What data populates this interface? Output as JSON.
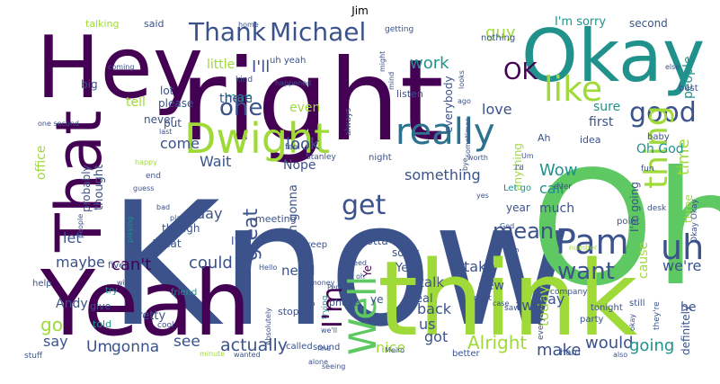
{
  "title": "Jim",
  "palette": {
    "dark": "#440154",
    "blue": "#3b528b",
    "teal": "#21918c",
    "green": "#5ec962",
    "lime": "#a0da39",
    "yellow": "#fde725",
    "mid": "#2c728e"
  },
  "words": [
    {
      "text": "Know",
      "color": "blue"
    },
    {
      "text": "right",
      "color": "dark"
    },
    {
      "text": "Oh",
      "color": "green"
    },
    {
      "text": "think",
      "color": "lime"
    },
    {
      "text": "Yeah",
      "color": "dark"
    },
    {
      "text": "Hey",
      "color": "dark"
    },
    {
      "text": "Okay",
      "color": "teal"
    },
    {
      "text": "That",
      "color": "dark"
    },
    {
      "text": "Dwight",
      "color": "lime"
    },
    {
      "text": "really",
      "color": "mid"
    },
    {
      "text": "Pam",
      "color": "blue"
    },
    {
      "text": "uh",
      "color": "blue"
    },
    {
      "text": "Well",
      "color": "green"
    },
    {
      "text": "I'm",
      "color": "dark"
    },
    {
      "text": "like",
      "color": "lime"
    },
    {
      "text": "Michael",
      "color": "blue"
    },
    {
      "text": "Thank",
      "color": "blue"
    },
    {
      "text": "OK",
      "color": "dark"
    },
    {
      "text": "good",
      "color": "blue"
    },
    {
      "text": "one",
      "color": "blue"
    },
    {
      "text": "get",
      "color": "blue"
    },
    {
      "text": "thing",
      "color": "lime"
    },
    {
      "text": "want",
      "color": "blue"
    },
    {
      "text": "mean",
      "color": "blue"
    },
    {
      "text": "great",
      "color": "blue"
    },
    {
      "text": "go",
      "color": "lime"
    },
    {
      "text": "Alright",
      "color": "lime"
    },
    {
      "text": "actually",
      "color": "blue"
    },
    {
      "text": "work",
      "color": "teal"
    },
    {
      "text": "guy",
      "color": "lime"
    },
    {
      "text": "I'll",
      "color": "blue"
    },
    {
      "text": "Wow",
      "color": "teal"
    },
    {
      "text": "call",
      "color": "teal"
    },
    {
      "text": "time",
      "color": "lime"
    },
    {
      "text": "could",
      "color": "blue"
    },
    {
      "text": "Oh God",
      "color": "teal"
    },
    {
      "text": "something",
      "color": "blue"
    },
    {
      "text": "look",
      "color": "blue"
    },
    {
      "text": "come",
      "color": "blue"
    },
    {
      "text": "Wait",
      "color": "blue"
    },
    {
      "text": "Nope",
      "color": "blue"
    },
    {
      "text": "day",
      "color": "blue"
    },
    {
      "text": "let",
      "color": "blue"
    },
    {
      "text": "maybe",
      "color": "blue"
    },
    {
      "text": "can't",
      "color": "dark"
    },
    {
      "text": "need",
      "color": "blue"
    },
    {
      "text": "Andy",
      "color": "blue"
    },
    {
      "text": "say",
      "color": "blue"
    },
    {
      "text": "Um",
      "color": "blue"
    },
    {
      "text": "gonna",
      "color": "blue"
    },
    {
      "text": "see",
      "color": "blue"
    },
    {
      "text": "would",
      "color": "blue"
    },
    {
      "text": "make",
      "color": "blue"
    },
    {
      "text": "going",
      "color": "teal"
    },
    {
      "text": "take",
      "color": "blue"
    },
    {
      "text": "way",
      "color": "blue"
    },
    {
      "text": "today",
      "color": "lime"
    },
    {
      "text": "two",
      "color": "blue"
    },
    {
      "text": "got",
      "color": "blue"
    },
    {
      "text": "nice",
      "color": "lime"
    },
    {
      "text": "back",
      "color": "blue"
    },
    {
      "text": "us",
      "color": "blue"
    },
    {
      "text": "talk",
      "color": "blue"
    },
    {
      "text": "new",
      "color": "blue"
    },
    {
      "text": "we're",
      "color": "blue"
    },
    {
      "text": "he",
      "color": "blue"
    },
    {
      "text": "people",
      "color": "teal"
    },
    {
      "text": "sure",
      "color": "teal"
    },
    {
      "text": "first",
      "color": "blue"
    },
    {
      "text": "love",
      "color": "blue"
    },
    {
      "text": "even",
      "color": "lime"
    },
    {
      "text": "man",
      "color": "teal"
    },
    {
      "text": "little",
      "color": "lime"
    },
    {
      "text": "there",
      "color": "blue"
    },
    {
      "text": "tell",
      "color": "lime"
    },
    {
      "text": "office",
      "color": "lime"
    },
    {
      "text": "thought",
      "color": "blue"
    },
    {
      "text": "probably",
      "color": "blue"
    },
    {
      "text": "much",
      "color": "blue"
    },
    {
      "text": "I'm gonna",
      "color": "blue"
    },
    {
      "text": "I'm going",
      "color": "blue"
    },
    {
      "text": "cause",
      "color": "lime"
    },
    {
      "text": "definitely",
      "color": "blue"
    },
    {
      "text": "year",
      "color": "blue"
    },
    {
      "text": "sorry",
      "color": "blue"
    },
    {
      "text": "Yep",
      "color": "blue"
    },
    {
      "text": "real",
      "color": "blue"
    },
    {
      "text": "pretty",
      "color": "blue"
    },
    {
      "text": "talking",
      "color": "lime"
    },
    {
      "text": "said",
      "color": "blue"
    },
    {
      "text": "nothing",
      "color": "blue"
    },
    {
      "text": "I'm sorry",
      "color": "teal"
    },
    {
      "text": "second",
      "color": "blue"
    },
    {
      "text": "stop",
      "color": "blue"
    },
    {
      "text": "idea",
      "color": "blue"
    },
    {
      "text": "Ah",
      "color": "blue"
    },
    {
      "text": "big",
      "color": "blue"
    },
    {
      "text": "lot",
      "color": "blue"
    },
    {
      "text": "please",
      "color": "blue"
    },
    {
      "text": "never",
      "color": "blue"
    },
    {
      "text": "put",
      "color": "blue"
    },
    {
      "text": "phone",
      "color": "blue"
    },
    {
      "text": "listen",
      "color": "blue"
    },
    {
      "text": "everybody",
      "color": "blue"
    },
    {
      "text": "anything",
      "color": "lime"
    },
    {
      "text": "gotta",
      "color": "blue"
    },
    {
      "text": "meeting",
      "color": "blue"
    },
    {
      "text": "though",
      "color": "blue"
    },
    {
      "text": "What",
      "color": "blue"
    },
    {
      "text": "I've",
      "color": "blue"
    },
    {
      "text": "give",
      "color": "blue"
    },
    {
      "text": "told",
      "color": "teal"
    },
    {
      "text": "try",
      "color": "teal"
    },
    {
      "text": "help",
      "color": "blue"
    },
    {
      "text": "five",
      "color": "blue"
    },
    {
      "text": "called",
      "color": "blue"
    },
    {
      "text": "sound",
      "color": "blue"
    },
    {
      "text": "party",
      "color": "blue"
    },
    {
      "text": "tonight",
      "color": "blue"
    },
    {
      "text": "better",
      "color": "blue"
    },
    {
      "text": "hard",
      "color": "blue"
    },
    {
      "text": "still",
      "color": "blue"
    },
    {
      "text": "point",
      "color": "blue"
    },
    {
      "text": "three",
      "color": "lime"
    },
    {
      "text": "baby",
      "color": "blue"
    },
    {
      "text": "best",
      "color": "blue"
    },
    {
      "text": "Let go",
      "color": "teal"
    },
    {
      "text": "night",
      "color": "blue"
    },
    {
      "text": "keep",
      "color": "blue"
    },
    {
      "text": "friend",
      "color": "teal"
    },
    {
      "text": "ye",
      "color": "blue"
    },
    {
      "text": "Ye",
      "color": "dark"
    },
    {
      "text": "uh yeah",
      "color": "blue"
    },
    {
      "text": "Okay Okay",
      "color": "blue"
    },
    {
      "text": "Stanley",
      "color": "blue"
    },
    {
      "text": "company",
      "color": "blue"
    },
    {
      "text": "everything",
      "color": "blue"
    },
    {
      "text": "they're",
      "color": "blue"
    },
    {
      "text": "else",
      "color": "blue"
    },
    {
      "text": "feel",
      "color": "blue"
    },
    {
      "text": "kind",
      "color": "blue"
    },
    {
      "text": "getting",
      "color": "blue"
    },
    {
      "text": "always",
      "color": "blue"
    },
    {
      "text": "happy",
      "color": "lime"
    },
    {
      "text": "fun",
      "color": "blue"
    },
    {
      "text": "desk",
      "color": "blue"
    },
    {
      "text": "ever",
      "color": "blue"
    },
    {
      "text": "next",
      "color": "blue"
    },
    {
      "text": "saw",
      "color": "blue"
    },
    {
      "text": "end",
      "color": "blue"
    },
    {
      "text": "guess",
      "color": "blue"
    },
    {
      "text": "thinking",
      "color": "blue"
    },
    {
      "text": "trying",
      "color": "teal"
    },
    {
      "text": "Absolutely",
      "color": "blue"
    },
    {
      "text": "cool",
      "color": "blue"
    },
    {
      "text": "stuff",
      "color": "blue"
    },
    {
      "text": "wife",
      "color": "blue"
    },
    {
      "text": "number",
      "color": "lime"
    },
    {
      "text": "also",
      "color": "blue"
    },
    {
      "text": "wanted",
      "color": "blue"
    },
    {
      "text": "minute",
      "color": "lime"
    },
    {
      "text": "happened",
      "color": "blue"
    },
    {
      "text": "coming",
      "color": "blue"
    },
    {
      "text": "last",
      "color": "blue"
    },
    {
      "text": "yes",
      "color": "blue"
    },
    {
      "text": "place",
      "color": "blue"
    },
    {
      "text": "bad",
      "color": "blue"
    },
    {
      "text": "home",
      "color": "blue"
    },
    {
      "text": "worth",
      "color": "blue"
    },
    {
      "text": "Jim",
      "color": "blue"
    },
    {
      "text": "Meiro",
      "color": "blue"
    },
    {
      "text": "case",
      "color": "blue"
    },
    {
      "text": "Hello",
      "color": "blue"
    },
    {
      "text": "money",
      "color": "blue"
    },
    {
      "text": "Perfect",
      "color": "blue"
    },
    {
      "text": "need",
      "color": "blue"
    },
    {
      "text": "oh",
      "color": "blue"
    },
    {
      "text": "one second",
      "color": "blue"
    },
    {
      "text": "might",
      "color": "blue"
    },
    {
      "text": "mind",
      "color": "blue"
    },
    {
      "text": "looks",
      "color": "blue"
    },
    {
      "text": "ago",
      "color": "blue"
    },
    {
      "text": "sometimes",
      "color": "blue"
    },
    {
      "text": "playing",
      "color": "teal"
    },
    {
      "text": "God",
      "color": "blue"
    },
    {
      "text": "I'd",
      "color": "blue"
    },
    {
      "text": "Um",
      "color": "blue"
    },
    {
      "text": "bye",
      "color": "blue"
    },
    {
      "text": "okay",
      "color": "blue"
    },
    {
      "text": "alone",
      "color": "blue"
    },
    {
      "text": "we'll",
      "color": "blue"
    },
    {
      "text": "fine",
      "color": "blue"
    },
    {
      "text": "seeing",
      "color": "blue"
    },
    {
      "text": "people",
      "color": "blue"
    }
  ]
}
